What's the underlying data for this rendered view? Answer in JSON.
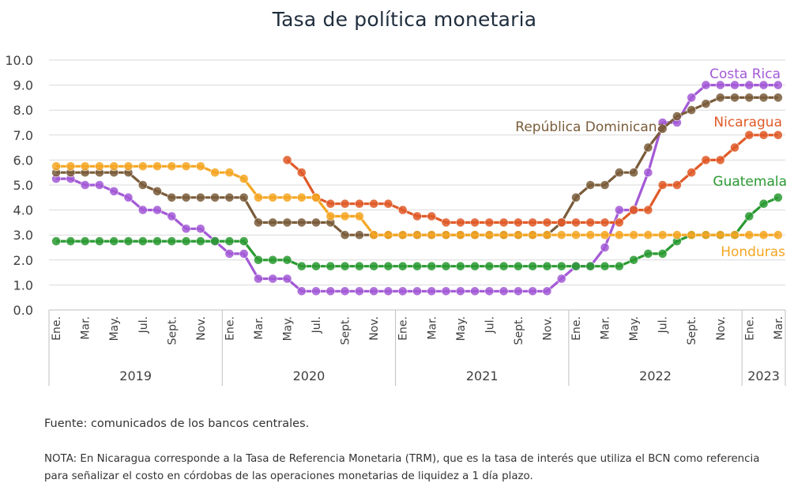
{
  "title": "Tasa de política monetaria",
  "source": "Fuente: comunicados de los bancos centrales.",
  "note": "NOTA: En Nicaragua corresponde a la Tasa de Referencia Monetaria (TRM), que es la tasa de interés que utiliza el BCN como referencia para señalizar el costo en córdobas de las operaciones monetarias de liquidez a 1 día plazo.",
  "chart_data": {
    "type": "line",
    "title": "Tasa de política monetaria",
    "xlabel": "",
    "ylabel": "",
    "ylim": [
      0,
      10
    ],
    "yticks": [
      "0.0",
      "1.0",
      "2.0",
      "3.0",
      "4.0",
      "5.0",
      "6.0",
      "7.0",
      "8.0",
      "9.0",
      "10.0"
    ],
    "grid": true,
    "legend": "inline labels at line ends",
    "x": [
      "2019-01",
      "2019-02",
      "2019-03",
      "2019-04",
      "2019-05",
      "2019-06",
      "2019-07",
      "2019-08",
      "2019-09",
      "2019-10",
      "2019-11",
      "2019-12",
      "2020-01",
      "2020-02",
      "2020-03",
      "2020-04",
      "2020-05",
      "2020-06",
      "2020-07",
      "2020-08",
      "2020-09",
      "2020-10",
      "2020-11",
      "2020-12",
      "2021-01",
      "2021-02",
      "2021-03",
      "2021-04",
      "2021-05",
      "2021-06",
      "2021-07",
      "2021-08",
      "2021-09",
      "2021-10",
      "2021-11",
      "2021-12",
      "2022-01",
      "2022-02",
      "2022-03",
      "2022-04",
      "2022-05",
      "2022-06",
      "2022-07",
      "2022-08",
      "2022-09",
      "2022-10",
      "2022-11",
      "2022-12",
      "2023-01",
      "2023-02",
      "2023-03"
    ],
    "month_labels": [
      "Ene.",
      "Mar.",
      "May.",
      "Jul.",
      "Sept.",
      "Nov.",
      "Ene.",
      "Mar.",
      "May.",
      "Jul.",
      "Sept.",
      "Nov.",
      "Ene.",
      "Mar.",
      "May.",
      "Jul.",
      "Sept.",
      "Nov.",
      "Ene.",
      "Mar.",
      "May.",
      "Jul.",
      "Sept.",
      "Nov.",
      "Ene.",
      "Mar."
    ],
    "years": [
      "2019",
      "2020",
      "2021",
      "2022",
      "2023"
    ],
    "series": [
      {
        "name": "Costa Rica",
        "color": "#a35ad6",
        "values": [
          5.25,
          5.25,
          5.0,
          5.0,
          4.75,
          4.5,
          4.0,
          4.0,
          3.75,
          3.25,
          3.25,
          2.75,
          2.25,
          2.25,
          1.25,
          1.25,
          1.25,
          0.75,
          0.75,
          0.75,
          0.75,
          0.75,
          0.75,
          0.75,
          0.75,
          0.75,
          0.75,
          0.75,
          0.75,
          0.75,
          0.75,
          0.75,
          0.75,
          0.75,
          0.75,
          1.25,
          1.75,
          1.75,
          2.5,
          4.0,
          4.0,
          5.5,
          7.5,
          7.5,
          8.5,
          9.0,
          9.0,
          9.0,
          9.0,
          9.0,
          9.0
        ]
      },
      {
        "name": "República Dominicana",
        "color": "#7a5c3a",
        "values": [
          5.5,
          5.5,
          5.5,
          5.5,
          5.5,
          5.5,
          5.0,
          4.75,
          4.5,
          4.5,
          4.5,
          4.5,
          4.5,
          4.5,
          3.5,
          3.5,
          3.5,
          3.5,
          3.5,
          3.5,
          3.0,
          3.0,
          3.0,
          3.0,
          3.0,
          3.0,
          3.0,
          3.0,
          3.0,
          3.0,
          3.0,
          3.0,
          3.0,
          3.0,
          3.0,
          3.5,
          4.5,
          5.0,
          5.0,
          5.5,
          5.5,
          6.5,
          7.25,
          7.75,
          8.0,
          8.25,
          8.5,
          8.5,
          8.5,
          8.5,
          8.5
        ]
      },
      {
        "name": "Nicaragua",
        "color": "#e05a28",
        "values": [
          null,
          null,
          null,
          null,
          null,
          null,
          null,
          null,
          null,
          null,
          null,
          null,
          null,
          null,
          null,
          null,
          6.0,
          5.5,
          4.5,
          4.25,
          4.25,
          4.25,
          4.25,
          4.25,
          4.0,
          3.75,
          3.75,
          3.5,
          3.5,
          3.5,
          3.5,
          3.5,
          3.5,
          3.5,
          3.5,
          3.5,
          3.5,
          3.5,
          3.5,
          3.5,
          4.0,
          4.0,
          5.0,
          5.0,
          5.5,
          6.0,
          6.0,
          6.5,
          7.0,
          7.0,
          7.0
        ]
      },
      {
        "name": "Guatemala",
        "color": "#2a9a32",
        "values": [
          2.75,
          2.75,
          2.75,
          2.75,
          2.75,
          2.75,
          2.75,
          2.75,
          2.75,
          2.75,
          2.75,
          2.75,
          2.75,
          2.75,
          2.0,
          2.0,
          2.0,
          1.75,
          1.75,
          1.75,
          1.75,
          1.75,
          1.75,
          1.75,
          1.75,
          1.75,
          1.75,
          1.75,
          1.75,
          1.75,
          1.75,
          1.75,
          1.75,
          1.75,
          1.75,
          1.75,
          1.75,
          1.75,
          1.75,
          1.75,
          2.0,
          2.25,
          2.25,
          2.75,
          3.0,
          3.0,
          3.0,
          3.0,
          3.75,
          4.25,
          4.5
        ]
      },
      {
        "name": "Honduras",
        "color": "#f5a623",
        "values": [
          5.75,
          5.75,
          5.75,
          5.75,
          5.75,
          5.75,
          5.75,
          5.75,
          5.75,
          5.75,
          5.75,
          5.5,
          5.5,
          5.25,
          4.5,
          4.5,
          4.5,
          4.5,
          4.5,
          3.75,
          3.75,
          3.75,
          3.0,
          3.0,
          3.0,
          3.0,
          3.0,
          3.0,
          3.0,
          3.0,
          3.0,
          3.0,
          3.0,
          3.0,
          3.0,
          3.0,
          3.0,
          3.0,
          3.0,
          3.0,
          3.0,
          3.0,
          3.0,
          3.0,
          3.0,
          3.0,
          3.0,
          3.0,
          3.0,
          3.0,
          3.0
        ]
      }
    ]
  }
}
